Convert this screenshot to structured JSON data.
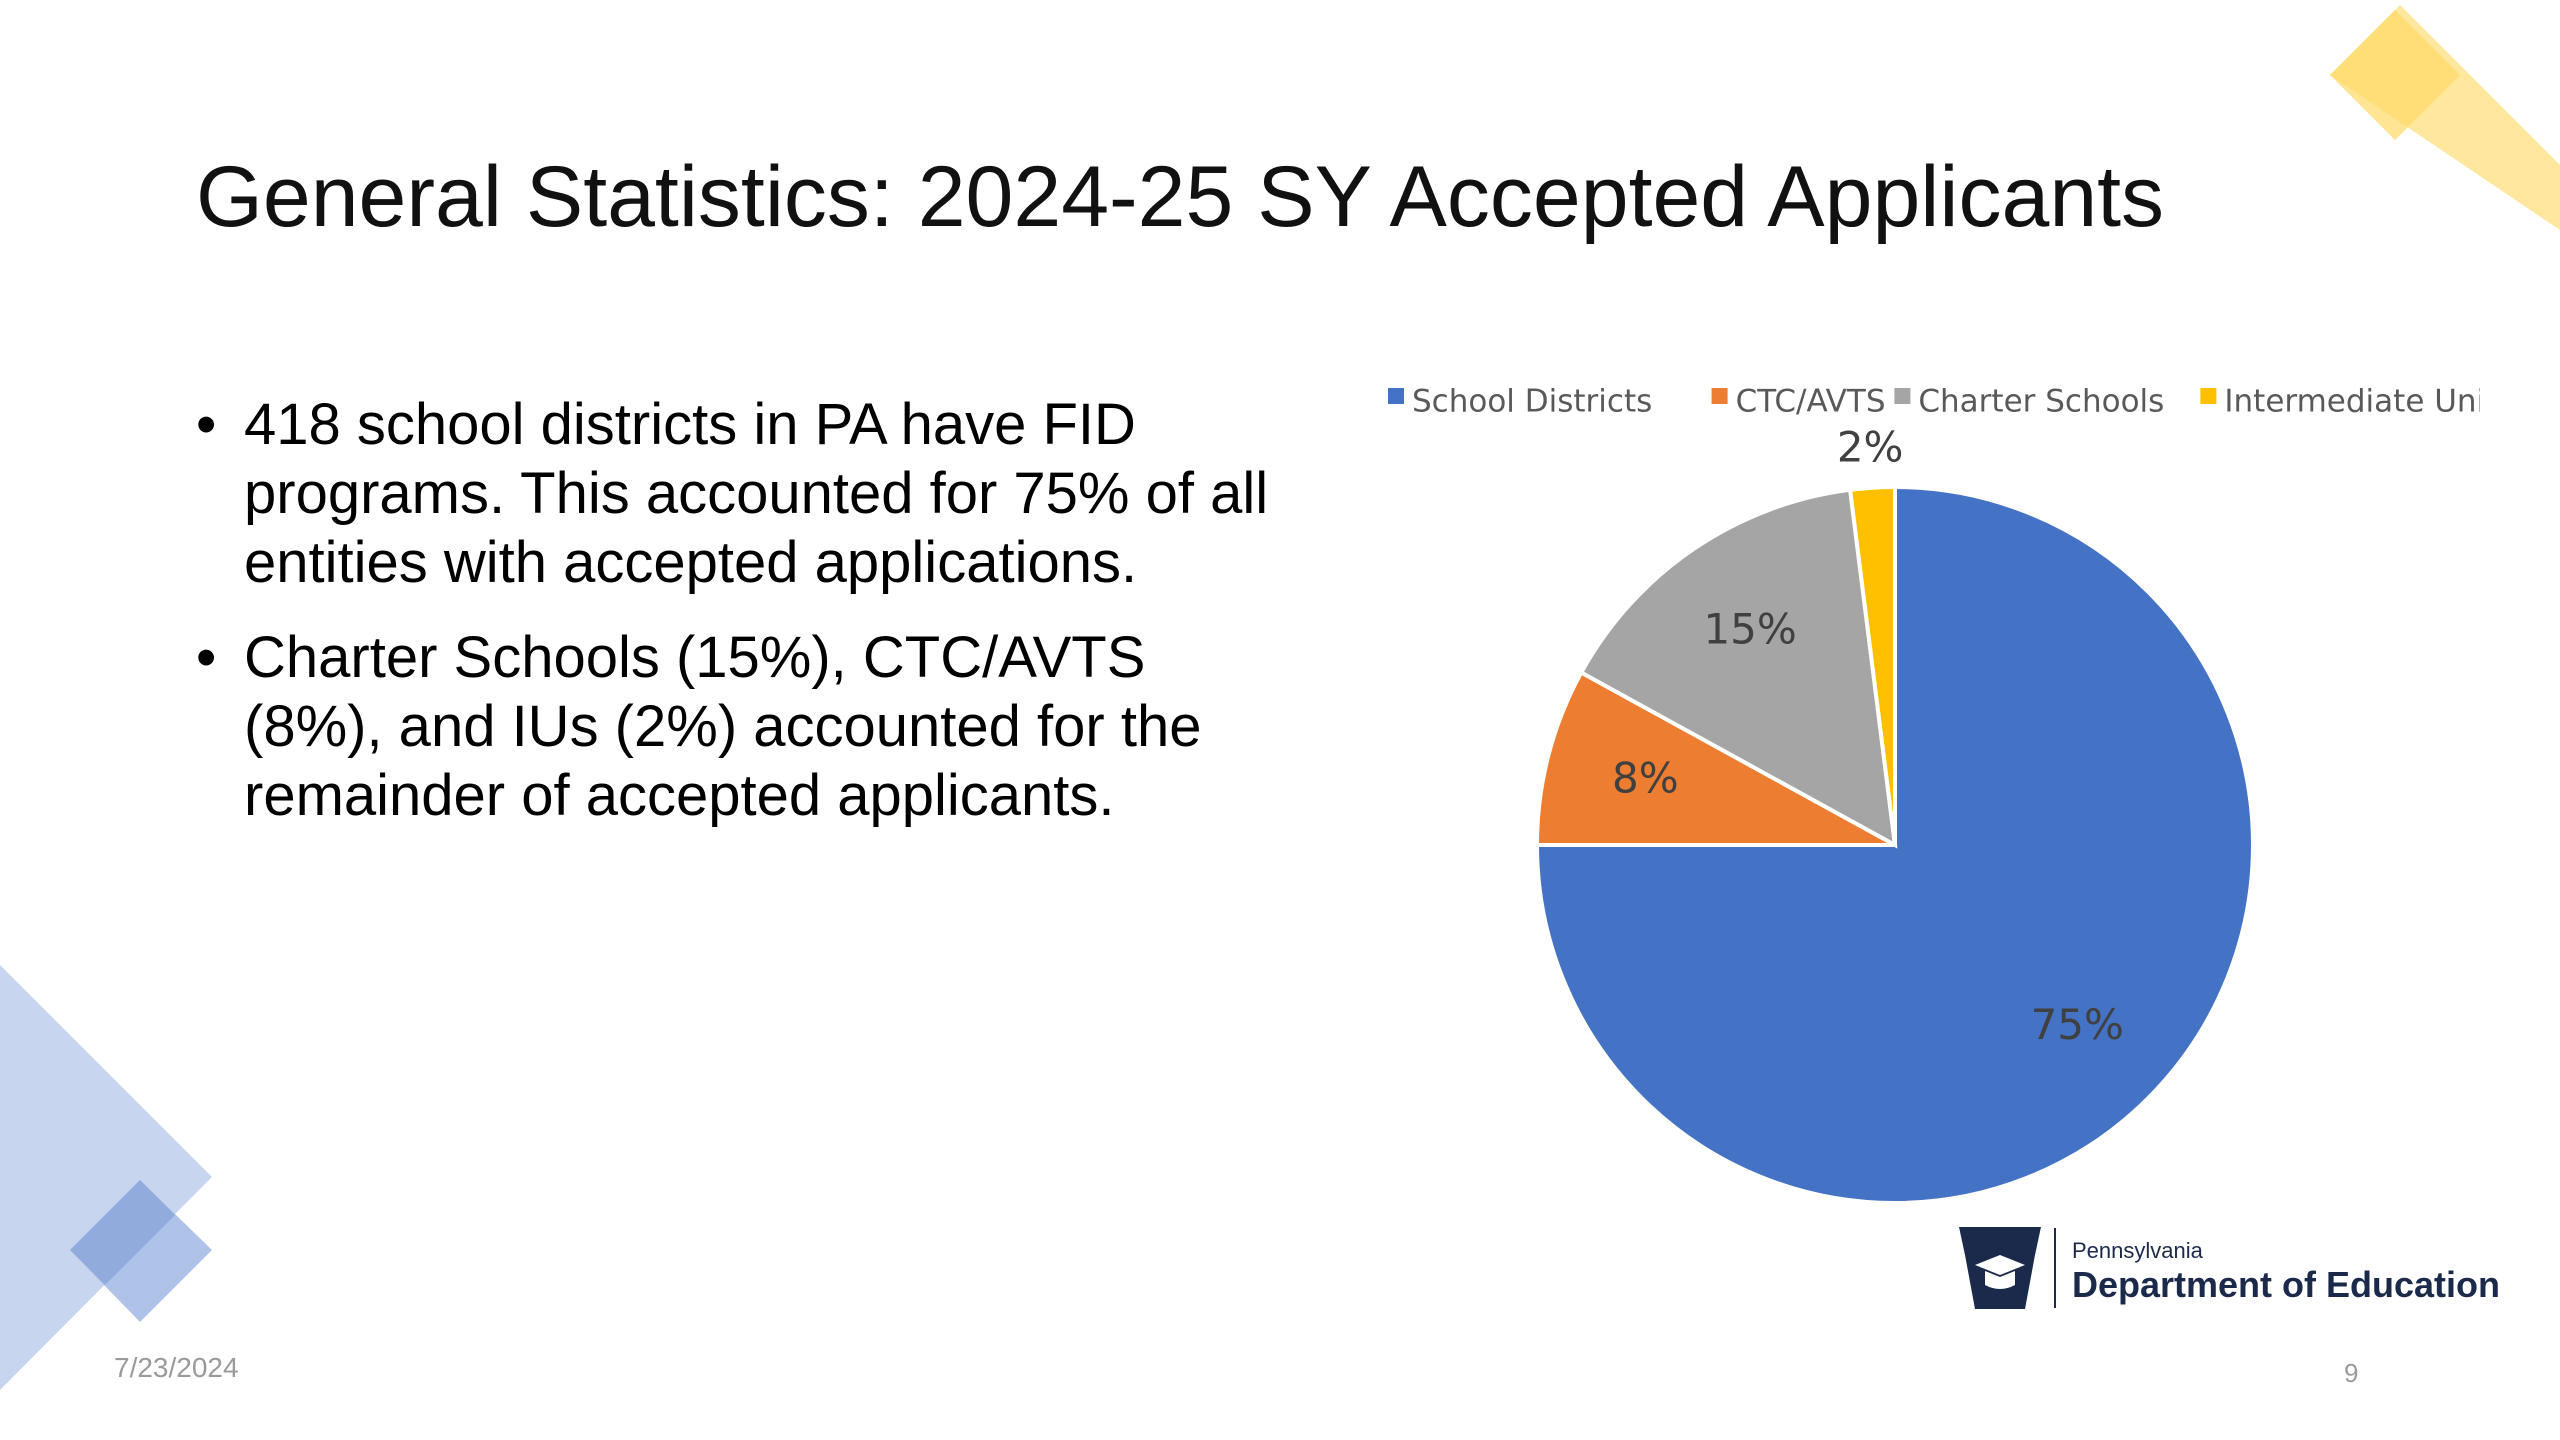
{
  "slide": {
    "title": "General Statistics: 2024-25 SY Accepted Applicants",
    "bullets": [
      "418 school districts in PA have FID programs. This accounted for 75% of all entities with accepted applications.",
      "Charter Schools (15%), CTC/AVTS (8%), and IUs (2%) accounted for the remainder of accepted applicants."
    ],
    "date": "7/23/2024",
    "page_number": "9"
  },
  "logo": {
    "state": "Pennsylvania",
    "department": "Department of Education"
  },
  "colors": {
    "blue": "#4472C4",
    "orange": "#ED7D31",
    "gray": "#A5A5A5",
    "gold": "#FFC000",
    "deco_gold": "#FFE699",
    "deco_blue": "#B4C7E7",
    "navy": "#1B2A4A"
  },
  "chart_data": {
    "type": "pie",
    "title": "",
    "legend_position": "top",
    "categories": [
      "School Districts",
      "CTC/AVTS",
      "Charter Schools",
      "Intermediate Units"
    ],
    "values": [
      75,
      8,
      15,
      2
    ],
    "labels": [
      "75%",
      "8%",
      "15%",
      "2%"
    ],
    "colors": [
      "#4472C4",
      "#ED7D31",
      "#A5A5A5",
      "#FFC000"
    ]
  }
}
